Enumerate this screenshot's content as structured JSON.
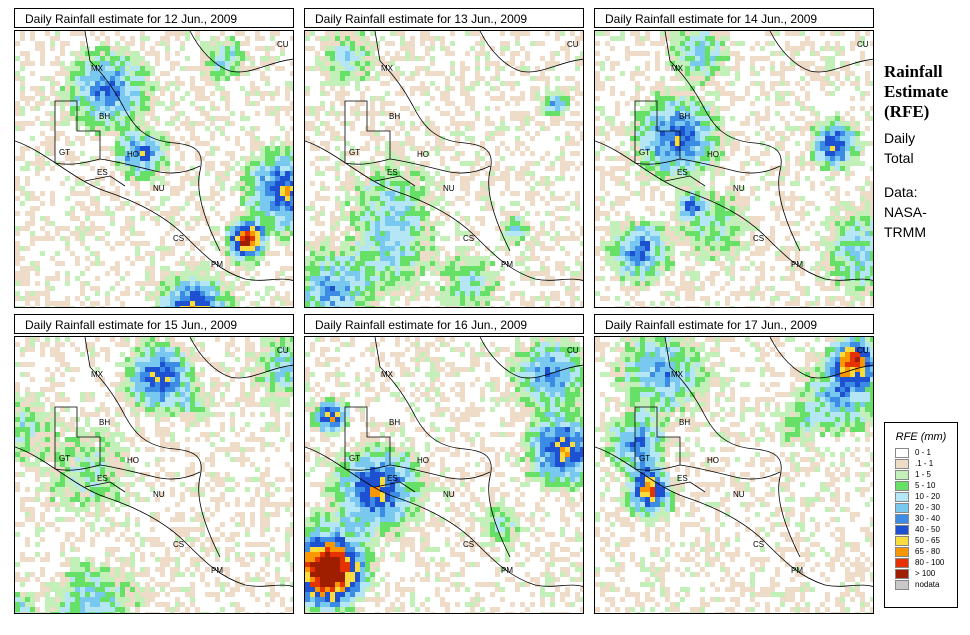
{
  "panels": [
    {
      "title": "Daily Rainfall estimate for  12 Jun., 2009",
      "seed": 12
    },
    {
      "title": "Daily Rainfall estimate for  13 Jun., 2009",
      "seed": 13
    },
    {
      "title": "Daily Rainfall estimate for  14 Jun., 2009",
      "seed": 14
    },
    {
      "title": "Daily Rainfall estimate for  15 Jun., 2009",
      "seed": 15
    },
    {
      "title": "Daily Rainfall estimate for  16 Jun., 2009",
      "seed": 16
    },
    {
      "title": "Daily Rainfall estimate for  17 Jun., 2009",
      "seed": 17
    }
  ],
  "country_labels": [
    "MX",
    "CU",
    "BH",
    "GT",
    "HO",
    "ES",
    "NU",
    "CS",
    "PM"
  ],
  "sidebar": {
    "title_line1": "Rainfall",
    "title_line2": "Estimate",
    "title_line3": "(RFE)",
    "daily": "Daily",
    "total": "Total",
    "data_label": "Data:",
    "source_line1": "NASA-",
    "source_line2": "TRMM"
  },
  "legend": {
    "title": "RFE (mm)",
    "items": [
      {
        "label": "0 - 1",
        "color": "#ffffff"
      },
      {
        "label": ".1 - 1",
        "color": "#eedcc8"
      },
      {
        "label": "1 - 5",
        "color": "#c3f0b8"
      },
      {
        "label": "5 - 10",
        "color": "#66e066"
      },
      {
        "label": "10 - 20",
        "color": "#b4e6f5"
      },
      {
        "label": "20 - 30",
        "color": "#78c8f0"
      },
      {
        "label": "30 - 40",
        "color": "#3c8ce6"
      },
      {
        "label": "40 - 50",
        "color": "#1e50d2"
      },
      {
        "label": "50 - 65",
        "color": "#fadc3c"
      },
      {
        "label": "65 - 80",
        "color": "#fa9600"
      },
      {
        "label": "80 - 100",
        "color": "#e63200"
      },
      {
        "label": "> 100",
        "color": "#a01e00"
      },
      {
        "label": "nodata",
        "color": "#c8c8c8"
      }
    ]
  }
}
